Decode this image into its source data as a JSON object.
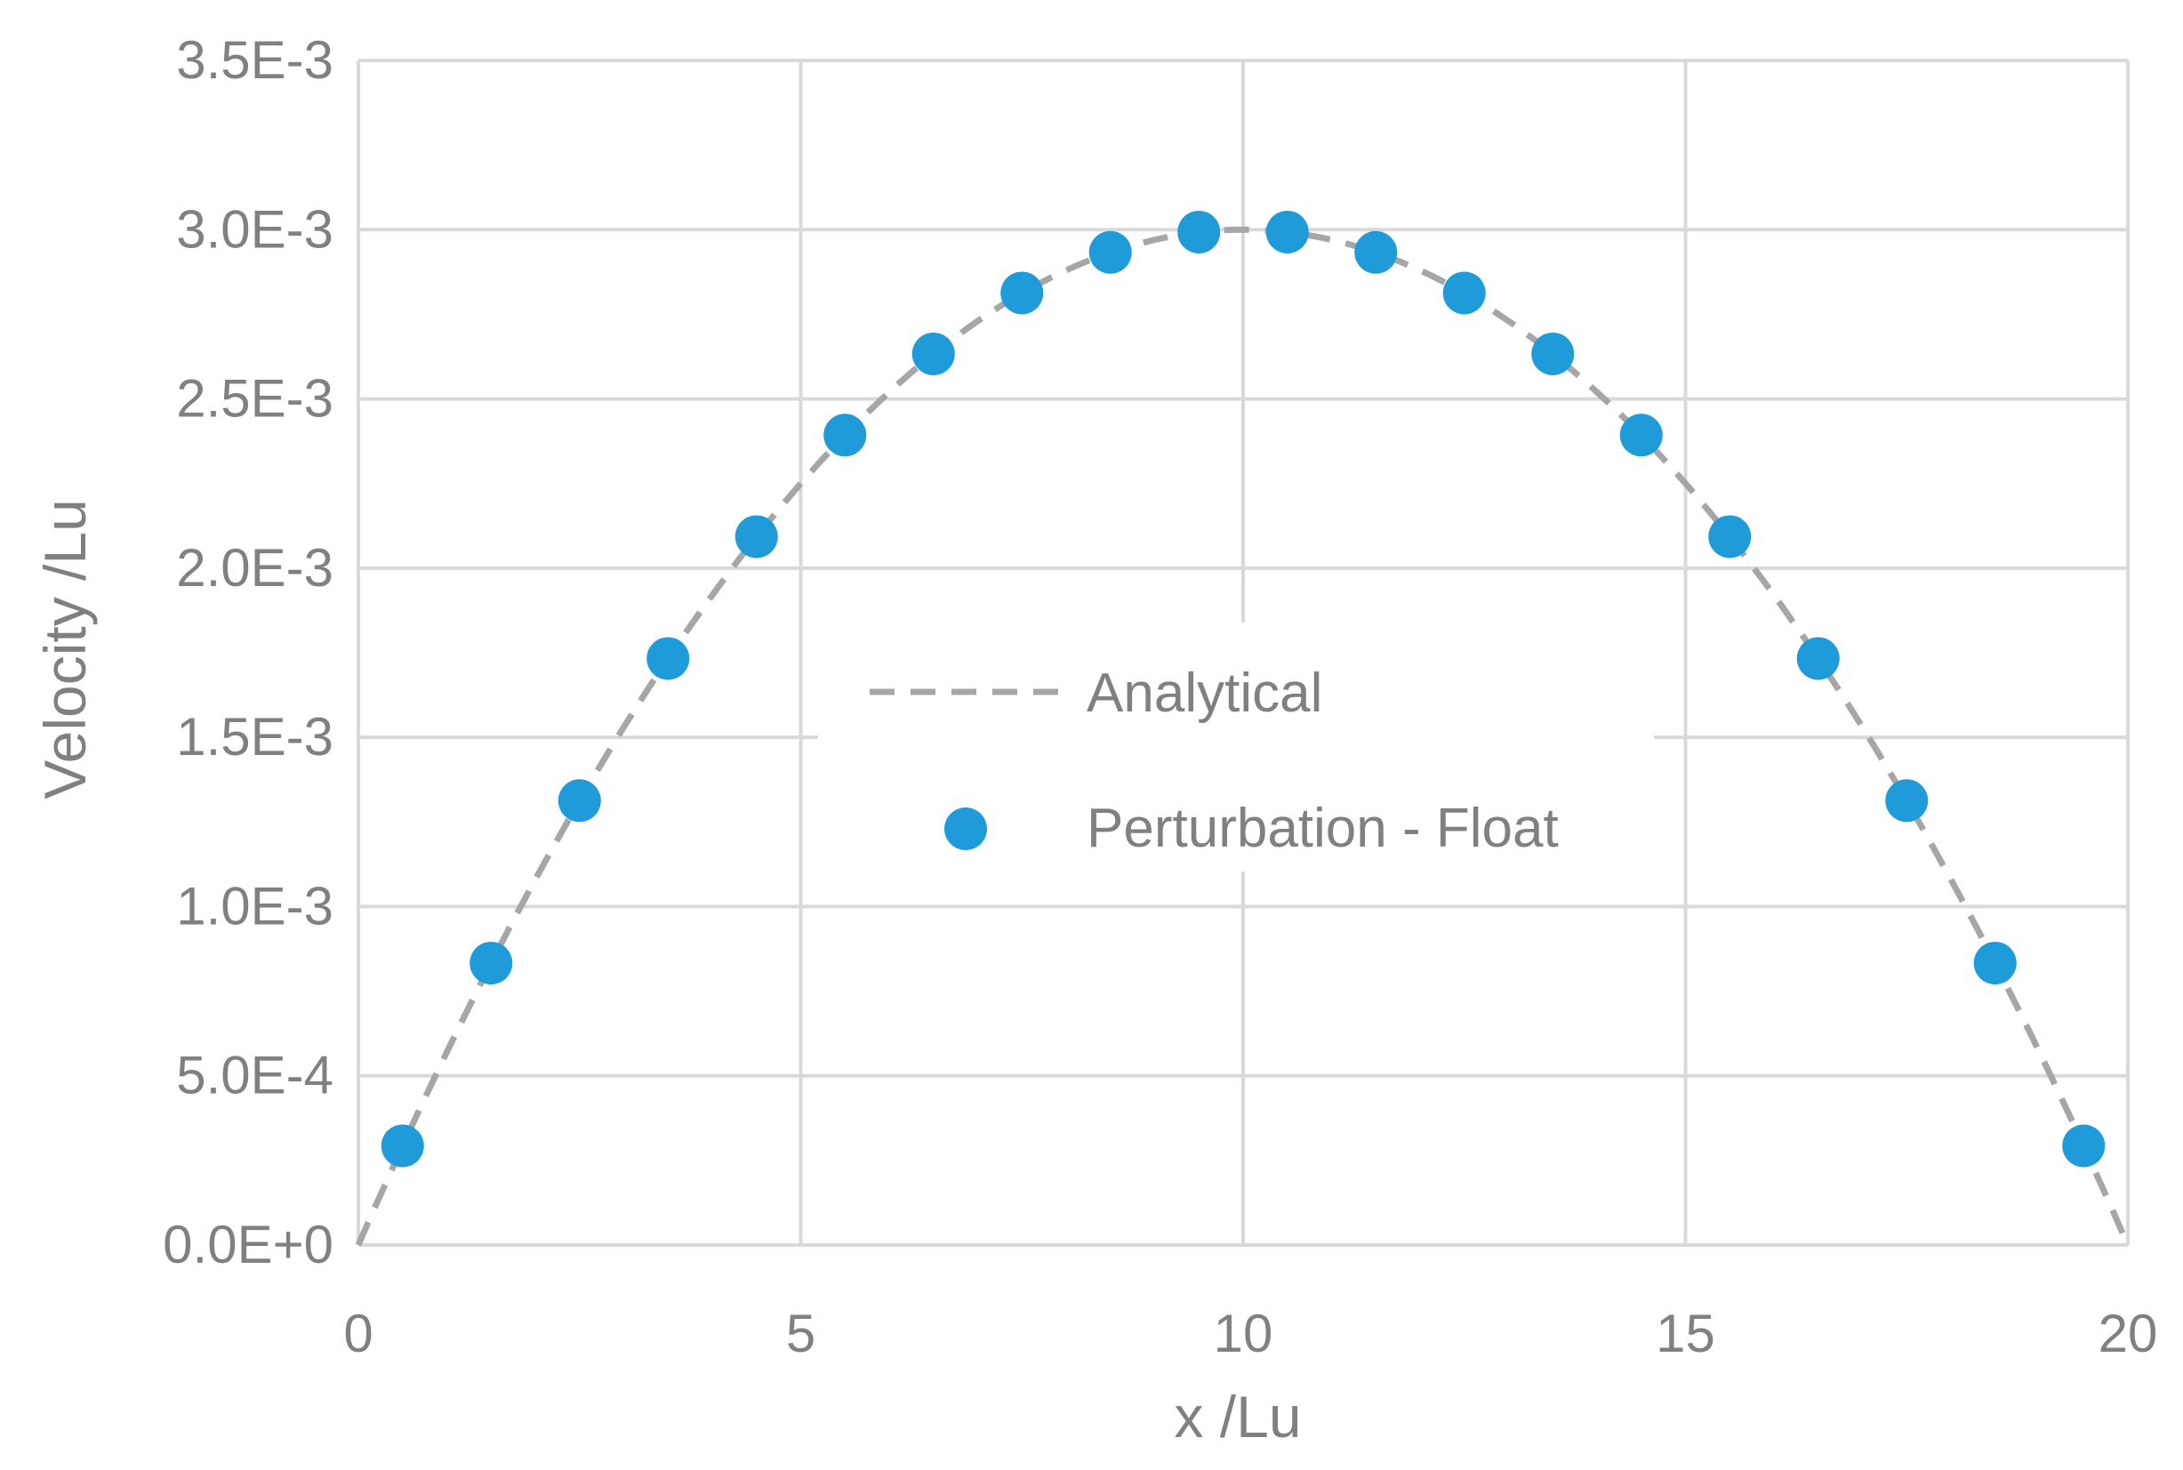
{
  "chart_data": {
    "type": "scatter",
    "title": "",
    "xlabel": "x /Lu",
    "ylabel": "Velocity /Lu",
    "xlim": [
      0,
      20
    ],
    "ylim": [
      0,
      0.0035
    ],
    "x_ticks": [
      0,
      5,
      10,
      15,
      20
    ],
    "x_tick_labels": [
      "0",
      "5",
      "10",
      "15",
      "20"
    ],
    "y_ticks": [
      0,
      0.0005,
      0.001,
      0.0015,
      0.002,
      0.0025,
      0.003,
      0.0035
    ],
    "y_tick_labels": [
      "0.0E+0",
      "5.0E-4",
      "1.0E-3",
      "1.5E-3",
      "2.0E-3",
      "2.5E-3",
      "3.0E-3",
      "3.5E-3"
    ],
    "grid": true,
    "legend_position": "center",
    "series": [
      {
        "name": "Analytical",
        "kind": "line",
        "style": "dashed",
        "color": "#a6a6a6",
        "formula_peak": 0.003,
        "x": [
          0,
          1,
          2,
          3,
          4,
          5,
          6,
          7,
          8,
          9,
          10,
          11,
          12,
          13,
          14,
          15,
          16,
          17,
          18,
          19,
          20
        ],
        "y": [
          0,
          0.00057,
          0.00108,
          0.00153,
          0.00192,
          0.00225,
          0.00252,
          0.00273,
          0.00288,
          0.00297,
          0.003,
          0.00297,
          0.00288,
          0.00273,
          0.00252,
          0.00225,
          0.00192,
          0.00153,
          0.00108,
          0.00057,
          0
        ]
      },
      {
        "name": "Perturbation - Float",
        "kind": "scatter",
        "color": "#1f9bd9",
        "x": [
          0.5,
          1.5,
          2.5,
          3.5,
          4.5,
          5.5,
          6.5,
          7.5,
          8.5,
          9.5,
          10.5,
          11.5,
          12.5,
          13.5,
          14.5,
          15.5,
          16.5,
          17.5,
          18.5,
          19.5
        ],
        "y": [
          0.000293,
          0.000833,
          0.001313,
          0.001733,
          0.002093,
          0.002393,
          0.002633,
          0.002813,
          0.002933,
          0.002993,
          0.002993,
          0.002933,
          0.002813,
          0.002633,
          0.002393,
          0.002093,
          0.001733,
          0.001313,
          0.000833,
          0.000293
        ]
      }
    ],
    "colors": {
      "grid": "#d9d9d9",
      "text": "#808080"
    }
  }
}
